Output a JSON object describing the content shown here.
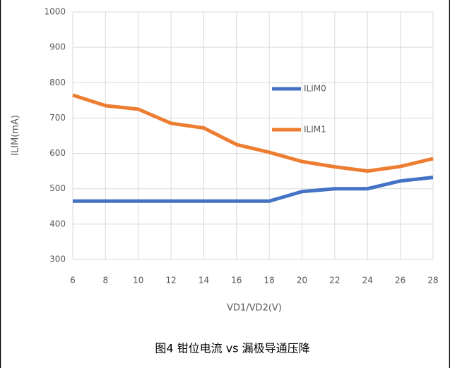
{
  "chart_data": {
    "type": "line",
    "x": [
      6,
      8,
      10,
      12,
      14,
      16,
      18,
      20,
      22,
      24,
      26,
      28
    ],
    "series": [
      {
        "name": "ILIM0",
        "color": "#4472c4",
        "values": [
          465,
          465,
          465,
          465,
          465,
          465,
          465,
          492,
          500,
          500,
          522,
          532
        ]
      },
      {
        "name": "ILIM1",
        "color": "#ed7d31",
        "values": [
          765,
          735,
          725,
          685,
          672,
          625,
          603,
          577,
          562,
          550,
          563,
          585
        ]
      }
    ],
    "xlim": [
      6,
      28
    ],
    "xticks": [
      6,
      8,
      10,
      12,
      14,
      16,
      18,
      20,
      22,
      24,
      26,
      28
    ],
    "ylim": [
      300,
      1000
    ],
    "yticks": [
      300,
      400,
      500,
      600,
      700,
      800,
      900,
      1000
    ],
    "xlabel": "VD1/VD2(V)",
    "ylabel": "ILIM(mA)",
    "grid": true,
    "caption": "图4 钳位电流 vs 漏极导通压降"
  }
}
